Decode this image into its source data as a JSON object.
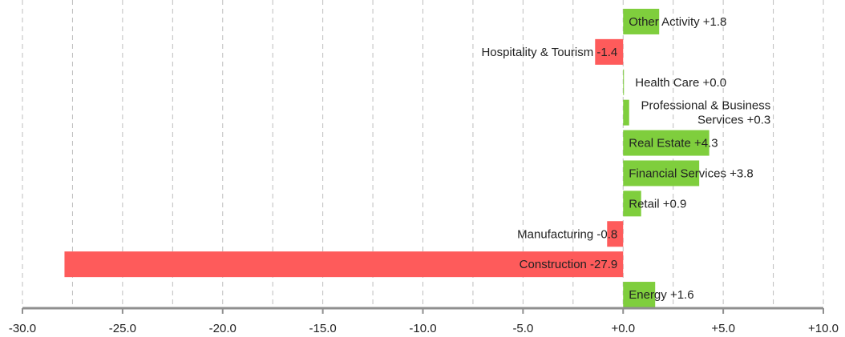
{
  "chart_data": {
    "type": "bar",
    "orientation": "horizontal",
    "title": "",
    "xlabel": "",
    "ylabel": "",
    "xlim": [
      -30,
      10
    ],
    "x_ticks": [
      "-30.0",
      "-25.0",
      "-20.0",
      "-15.0",
      "-10.0",
      "-5.0",
      "+0.0",
      "+5.0",
      "+10.0"
    ],
    "grid": true,
    "colors": {
      "positive": "#7fce3d",
      "negative": "#fe5b5b"
    },
    "categories": [
      "Other Activity",
      "Hospitality & Tourism",
      "Health Care",
      "Professional & Business Services",
      "Real Estate",
      "Financial Services",
      "Retail",
      "Manufacturing",
      "Construction",
      "Energy"
    ],
    "values": [
      1.8,
      -1.4,
      0.0,
      0.3,
      4.3,
      3.8,
      0.9,
      -0.8,
      -27.9,
      1.6
    ],
    "labels": [
      [
        "Other Activity +1.8"
      ],
      [
        "Hospitality & Tourism -1.4"
      ],
      [
        "Health Care +0.0"
      ],
      [
        "Professional & Business",
        "Services +0.3"
      ],
      [
        "Real Estate +4.3"
      ],
      [
        "Financial Services +3.8"
      ],
      [
        "Retail +0.9"
      ],
      [
        "Manufacturing -0.8"
      ],
      [
        "Construction -27.9"
      ],
      [
        "Energy +1.6"
      ]
    ]
  }
}
